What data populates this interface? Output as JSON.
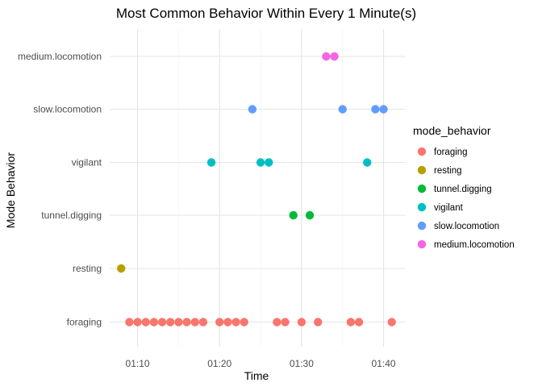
{
  "chart_data": {
    "type": "scatter",
    "title": "Most Common Behavior Within Every 1 Minute(s)",
    "xlabel": "Time",
    "ylabel": "Mode Behavior",
    "x_unit": "minutes after 01:00",
    "xlim": [
      6.6,
      42.6
    ],
    "x_ticks": [
      {
        "value": 10,
        "label": "01:10"
      },
      {
        "value": 20,
        "label": "01:20"
      },
      {
        "value": 30,
        "label": "01:30"
      },
      {
        "value": 40,
        "label": "01:40"
      }
    ],
    "categories": [
      "foraging",
      "resting",
      "tunnel.digging",
      "vigilant",
      "slow.locomotion",
      "medium.locomotion"
    ],
    "grid": true,
    "legend": {
      "title": "mode_behavior",
      "position": "right",
      "entries": [
        "foraging",
        "resting",
        "tunnel.digging",
        "vigilant",
        "slow.locomotion",
        "medium.locomotion"
      ]
    },
    "series": [
      {
        "name": "foraging",
        "color": "#F8766D",
        "x": [
          9,
          10,
          11,
          12,
          13,
          14,
          15,
          16,
          17,
          18,
          20,
          21,
          22,
          23,
          27,
          28,
          30,
          32,
          36,
          37,
          41
        ]
      },
      {
        "name": "resting",
        "color": "#B79F00",
        "x": [
          8
        ]
      },
      {
        "name": "tunnel.digging",
        "color": "#00BA38",
        "x": [
          29,
          31
        ]
      },
      {
        "name": "vigilant",
        "color": "#00BFC4",
        "x": [
          19,
          25,
          26,
          38
        ]
      },
      {
        "name": "slow.locomotion",
        "color": "#619CFF",
        "x": [
          24,
          35,
          39,
          40
        ]
      },
      {
        "name": "medium.locomotion",
        "color": "#F564E3",
        "x": [
          33,
          34
        ]
      }
    ]
  }
}
